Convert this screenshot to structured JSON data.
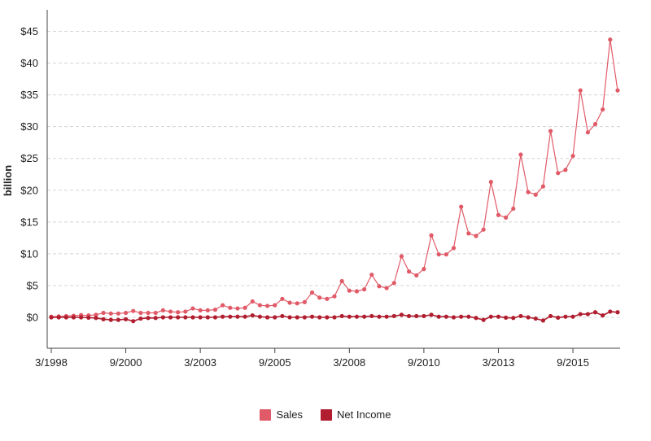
{
  "chart_data": {
    "type": "line",
    "ylabel": "billion",
    "ylim": [
      -5,
      48
    ],
    "ytick_values": [
      0,
      5,
      10,
      15,
      20,
      25,
      30,
      35,
      40,
      45
    ],
    "ytick_labels": [
      "$0",
      "$5",
      "$10",
      "$15",
      "$20",
      "$25",
      "$30",
      "$35",
      "$40",
      "$45"
    ],
    "xtick_labels": [
      "3/1998",
      "9/2000",
      "3/2003",
      "9/2005",
      "3/2008",
      "9/2010",
      "3/2013",
      "9/2015"
    ],
    "xtick_positions": [
      0,
      10,
      20,
      30,
      40,
      50,
      60,
      70
    ],
    "grid": true,
    "series": [
      {
        "name": "Sales",
        "color": "#e05a67",
        "values": [
          0.1,
          0.15,
          0.2,
          0.25,
          0.35,
          0.3,
          0.4,
          0.7,
          0.6,
          0.6,
          0.7,
          1.0,
          0.7,
          0.7,
          0.7,
          1.1,
          0.9,
          0.8,
          0.9,
          1.4,
          1.1,
          1.1,
          1.2,
          1.9,
          1.5,
          1.4,
          1.5,
          2.5,
          1.9,
          1.8,
          1.9,
          2.9,
          2.3,
          2.2,
          2.4,
          3.9,
          3.1,
          2.9,
          3.3,
          5.7,
          4.2,
          4.1,
          4.4,
          6.7,
          4.9,
          4.6,
          5.4,
          9.6,
          7.2,
          6.6,
          7.6,
          12.9,
          9.9,
          9.9,
          10.9,
          17.4,
          13.2,
          12.8,
          13.8,
          21.3,
          16.1,
          15.7,
          17.1,
          25.6,
          19.7,
          19.3,
          20.6,
          29.3,
          22.7,
          23.2,
          25.4,
          35.7,
          29.1,
          30.4,
          32.7,
          43.7,
          35.7
        ]
      },
      {
        "name": "Net Income",
        "color": "#b01e2f",
        "values": [
          0.0,
          0.0,
          0.0,
          0.0,
          0.0,
          -0.05,
          -0.1,
          -0.3,
          -0.4,
          -0.4,
          -0.3,
          -0.6,
          -0.2,
          -0.1,
          -0.1,
          0.0,
          0.0,
          0.0,
          0.0,
          0.0,
          0.0,
          0.0,
          0.0,
          0.1,
          0.1,
          0.1,
          0.1,
          0.3,
          0.1,
          0.0,
          0.0,
          0.2,
          0.0,
          0.0,
          0.0,
          0.1,
          0.0,
          0.0,
          0.0,
          0.2,
          0.1,
          0.1,
          0.1,
          0.2,
          0.1,
          0.1,
          0.2,
          0.4,
          0.2,
          0.2,
          0.2,
          0.4,
          0.1,
          0.1,
          0.0,
          0.1,
          0.1,
          -0.1,
          -0.4,
          0.1,
          0.1,
          -0.05,
          -0.1,
          0.2,
          0.0,
          -0.2,
          -0.5,
          0.2,
          -0.05,
          0.1,
          0.1,
          0.5,
          0.5,
          0.8,
          0.3,
          0.9,
          0.8
        ]
      }
    ]
  }
}
